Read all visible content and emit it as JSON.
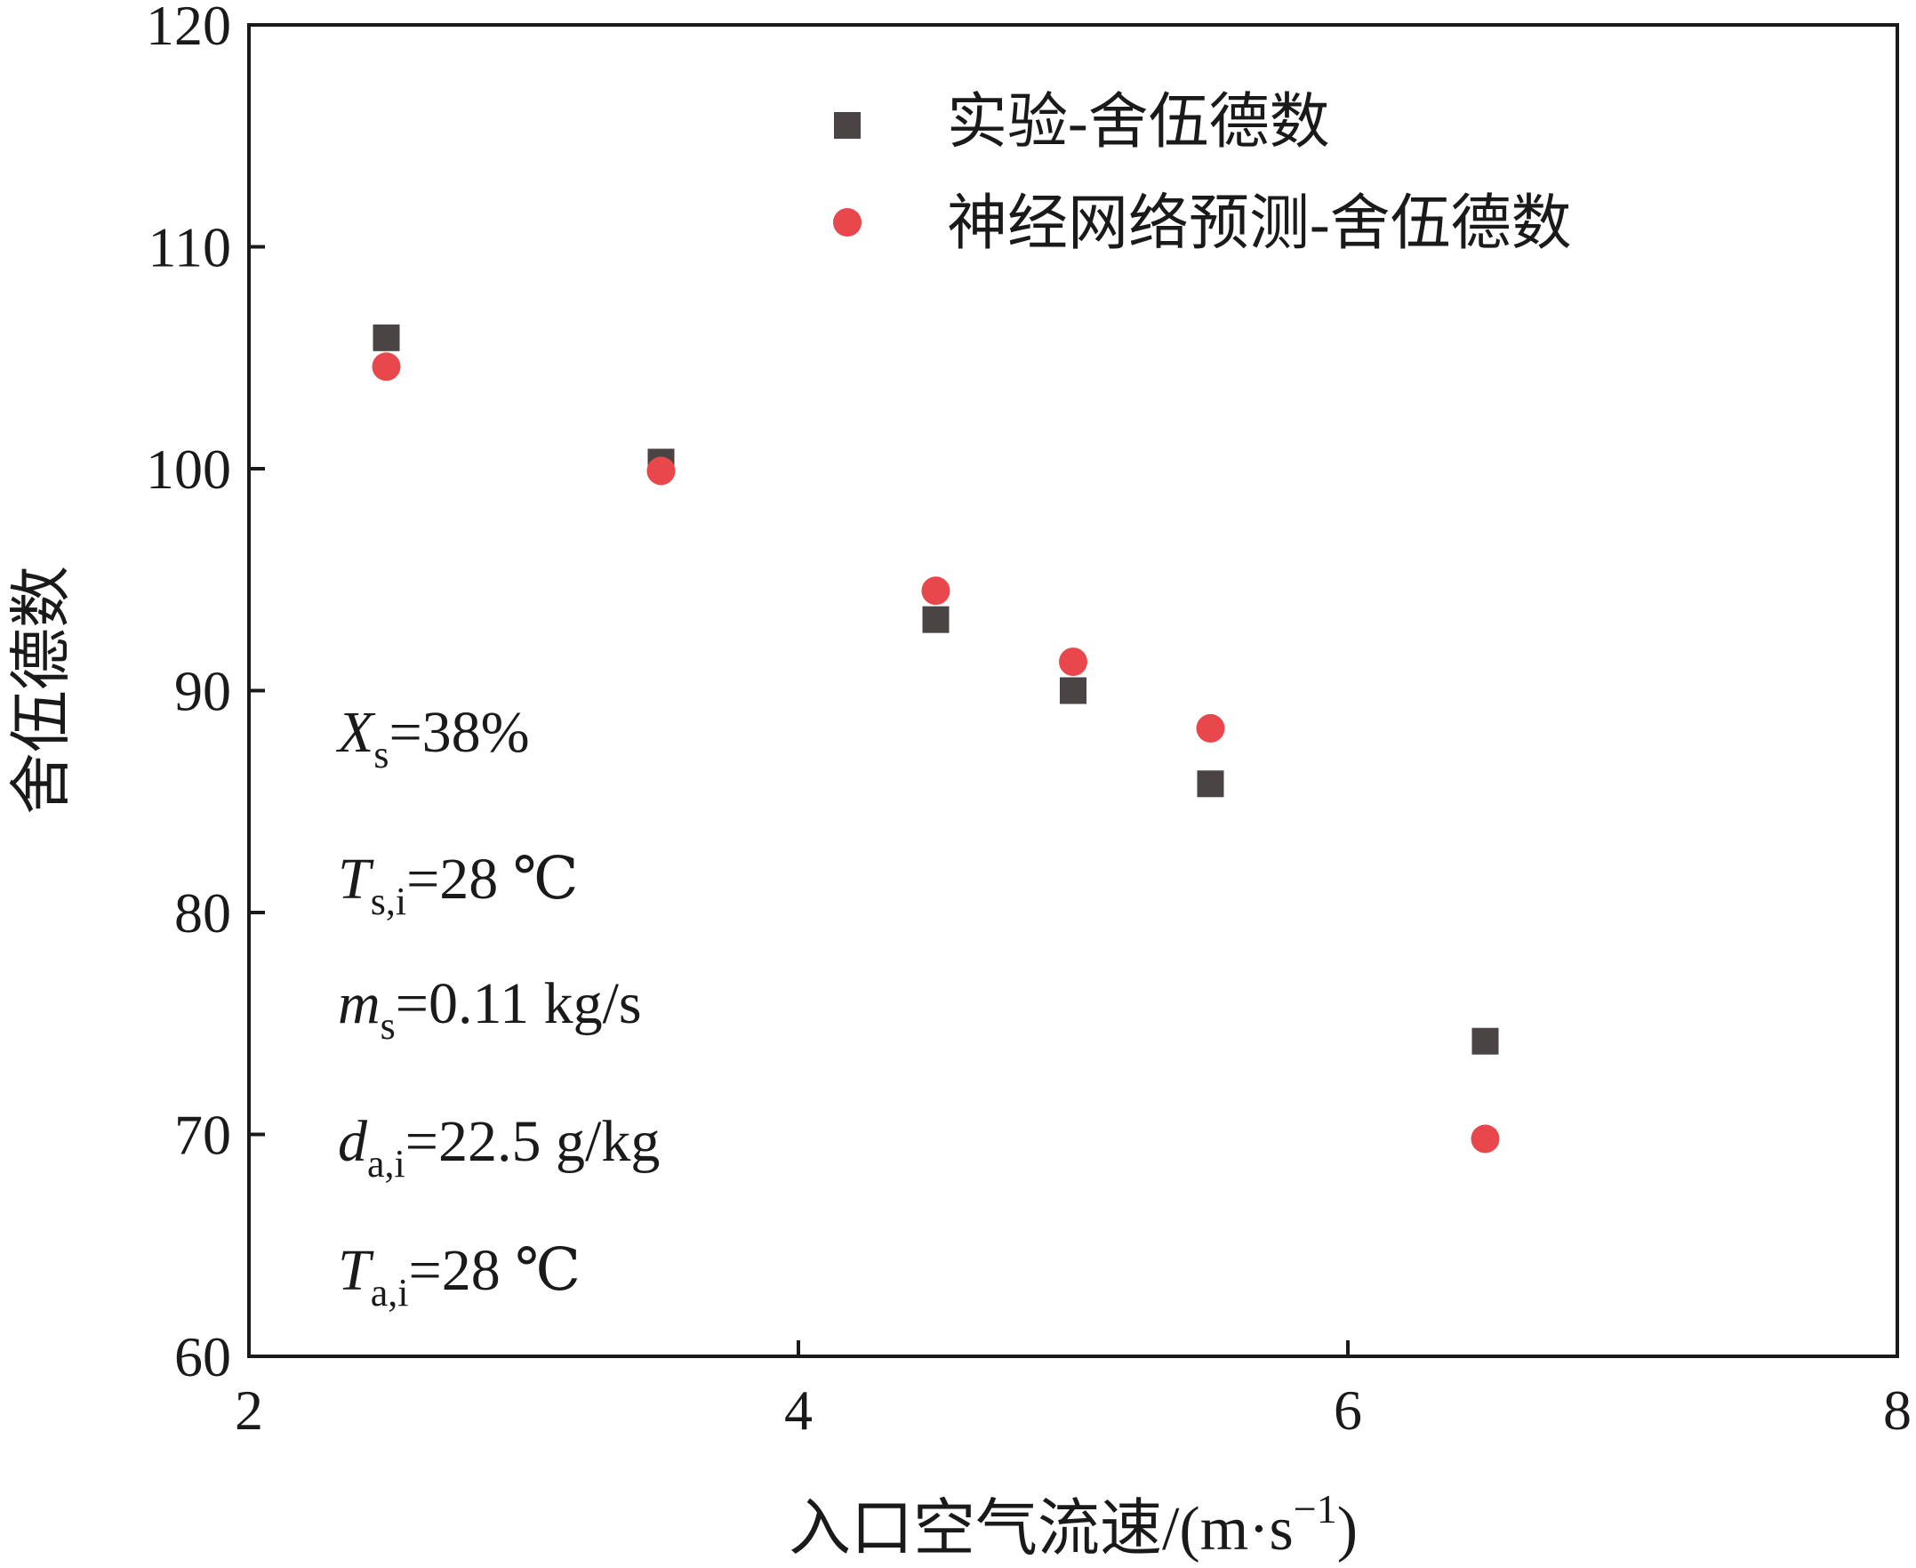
{
  "chart_data": {
    "type": "scatter",
    "xlabel": "入口空气流速/(m·s",
    "xlabel_exp": "−1",
    "xlabel_close": ")",
    "ylabel": "舍伍德数",
    "xlim": [
      2,
      8
    ],
    "ylim": [
      60,
      120
    ],
    "x_ticks": [
      2,
      4,
      6,
      8
    ],
    "y_ticks": [
      60,
      70,
      80,
      90,
      100,
      110,
      120
    ],
    "grid": false,
    "legend_position": "top-right",
    "series": [
      {
        "name": "实验-舍伍德数",
        "marker": "square",
        "color": "#4a4444",
        "x": [
          2.5,
          3.5,
          4.5,
          5.0,
          5.5,
          6.5
        ],
        "y": [
          105.9,
          100.3,
          93.2,
          90.0,
          85.8,
          74.2
        ]
      },
      {
        "name": "神经网络预测-舍伍德数",
        "marker": "circle",
        "color": "#e8474c",
        "x": [
          2.5,
          3.5,
          4.5,
          5.0,
          5.5,
          6.5
        ],
        "y": [
          104.6,
          99.9,
          94.5,
          91.3,
          88.3,
          69.8
        ]
      }
    ],
    "annotations": [
      {
        "main": "X",
        "sub": "s",
        "rest": "=38%"
      },
      {
        "main": "T",
        "sub": "s,i",
        "rest": "=28 ℃"
      },
      {
        "main": "m",
        "sub": "s",
        "rest": "=0.11 kg/s"
      },
      {
        "main": "d",
        "sub": "a,i",
        "rest": "=22.5 g/kg"
      },
      {
        "main": "T",
        "sub": "a,i",
        "rest": "=28 ℃"
      }
    ]
  }
}
